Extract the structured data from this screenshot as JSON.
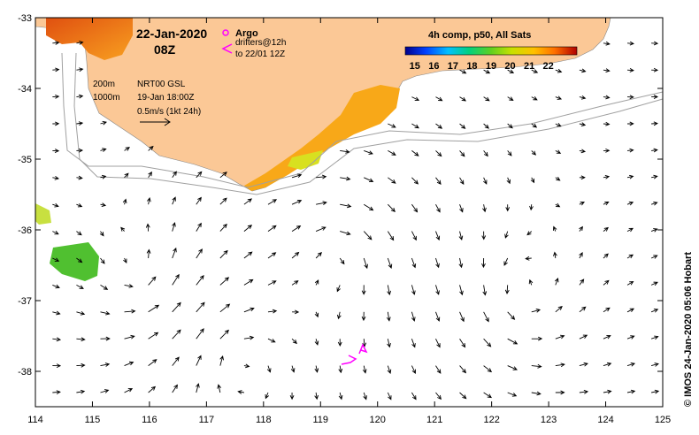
{
  "header": {
    "date": "22-Jan-2020",
    "time": "08Z"
  },
  "legend": {
    "argo_label": "Argo",
    "drifters_label": "drifters@12h",
    "drifters_until": "to 22/01 12Z",
    "colorbar_title": "4h comp, p50, All Sats",
    "colorbar_ticks": [
      "15",
      "16",
      "17",
      "18",
      "19",
      "20",
      "21",
      "22"
    ],
    "colorbar_min": 14.5,
    "colorbar_max": 23.5
  },
  "annotations": {
    "contour_200": "200m",
    "contour_1000": "1000m",
    "current_source": "NRT00 GSL",
    "current_time": "19-Jan 18:00Z",
    "scale_label": "0.5m/s (1kt 24h)"
  },
  "credit": "© IMOS 24-Jan-2020 05:06 Hobart",
  "axes": {
    "lon_min": 114,
    "lon_max": 125,
    "lat_min": -38.5,
    "lat_max": -33,
    "x_ticks": [
      "114",
      "115",
      "116",
      "117",
      "118",
      "119",
      "120",
      "121",
      "122",
      "123",
      "124",
      "125"
    ],
    "y_ticks": [
      "-33",
      "-34",
      "-35",
      "-36",
      "-37",
      "-38"
    ]
  },
  "colors": {
    "land": "#fbc896",
    "contours": "#a0a0a0",
    "drifter": "#ff00ff",
    "arrows": "#000000"
  }
}
